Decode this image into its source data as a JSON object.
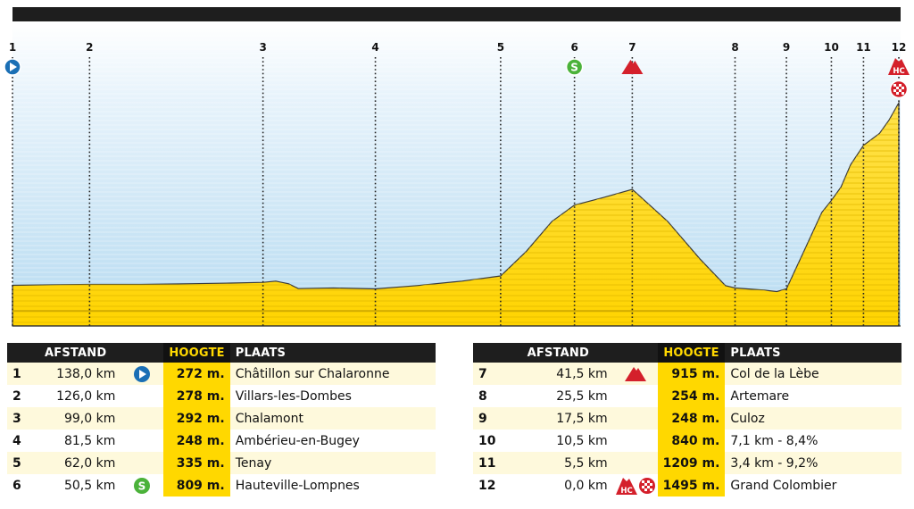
{
  "profile": {
    "points": [
      {
        "id": "1",
        "km_to_go": 138.0
      },
      {
        "id": "2",
        "km_to_go": 126.0
      },
      {
        "id": "3",
        "km_to_go": 99.0
      },
      {
        "id": "4",
        "km_to_go": 81.5
      },
      {
        "id": "5",
        "km_to_go": 62.0
      },
      {
        "id": "6",
        "km_to_go": 50.5
      },
      {
        "id": "7",
        "km_to_go": 41.5
      },
      {
        "id": "8",
        "km_to_go": 25.5
      },
      {
        "id": "9",
        "km_to_go": 17.5
      },
      {
        "id": "10",
        "km_to_go": 10.5
      },
      {
        "id": "11",
        "km_to_go": 5.5
      },
      {
        "id": "12",
        "km_to_go": 0.0
      }
    ],
    "elevation_profile": [
      [
        138.0,
        272
      ],
      [
        132.0,
        275
      ],
      [
        126.0,
        278
      ],
      [
        118.0,
        278
      ],
      [
        110.0,
        283
      ],
      [
        104.0,
        287
      ],
      [
        99.0,
        292
      ],
      [
        97.0,
        300
      ],
      [
        95.0,
        282
      ],
      [
        93.5,
        250
      ],
      [
        88.0,
        254
      ],
      [
        81.5,
        248
      ],
      [
        75.0,
        270
      ],
      [
        68.0,
        300
      ],
      [
        62.0,
        335
      ],
      [
        58.0,
        500
      ],
      [
        54.0,
        700
      ],
      [
        50.5,
        809
      ],
      [
        46.0,
        860
      ],
      [
        41.5,
        915
      ],
      [
        36.0,
        700
      ],
      [
        31.0,
        450
      ],
      [
        27.0,
        270
      ],
      [
        25.5,
        254
      ],
      [
        21.0,
        240
      ],
      [
        19.0,
        230
      ],
      [
        17.5,
        248
      ],
      [
        15.0,
        480
      ],
      [
        12.0,
        760
      ],
      [
        10.5,
        840
      ],
      [
        9.0,
        930
      ],
      [
        7.5,
        1080
      ],
      [
        5.5,
        1209
      ],
      [
        3.0,
        1290
      ],
      [
        1.5,
        1380
      ],
      [
        0.0,
        1495
      ]
    ],
    "colors": {
      "fill": "#ffd800",
      "sky": "#cfe7f6",
      "guide": "#222222",
      "start": "#1a6fb5",
      "sprint": "#4bb23a",
      "climb": "#d4202b"
    },
    "icons": {
      "start": "play-circle-icon",
      "sprint": "sprint-s-icon",
      "climb": "mountain-icon",
      "hc": "hc-climb-icon",
      "finish": "finish-flag-icon"
    }
  },
  "headers": {
    "afstand": "AFSTAND",
    "hoogte": "HOOGTE",
    "plaats": "PLAATS"
  },
  "left_rows": [
    {
      "num": "1",
      "dist": "138,0 km",
      "hoogte": "272 m.",
      "plaats": "Châtillon sur Chalaronne",
      "icon": "start"
    },
    {
      "num": "2",
      "dist": "126,0 km",
      "hoogte": "278 m.",
      "plaats": "Villars-les-Dombes",
      "icon": ""
    },
    {
      "num": "3",
      "dist": "99,0 km",
      "hoogte": "292 m.",
      "plaats": "Chalamont",
      "icon": ""
    },
    {
      "num": "4",
      "dist": "81,5 km",
      "hoogte": "248 m.",
      "plaats": "Ambérieu-en-Bugey",
      "icon": ""
    },
    {
      "num": "5",
      "dist": "62,0 km",
      "hoogte": "335 m.",
      "plaats": "Tenay",
      "icon": ""
    },
    {
      "num": "6",
      "dist": "50,5 km",
      "hoogte": "809 m.",
      "plaats": "Hauteville-Lompnes",
      "icon": "sprint"
    }
  ],
  "right_rows": [
    {
      "num": "7",
      "dist": "41,5 km",
      "hoogte": "915 m.",
      "plaats": "Col de la Lèbe",
      "icon": "climb"
    },
    {
      "num": "8",
      "dist": "25,5 km",
      "hoogte": "254 m.",
      "plaats": "Artemare",
      "icon": ""
    },
    {
      "num": "9",
      "dist": "17,5 km",
      "hoogte": "248 m.",
      "plaats": "Culoz",
      "icon": ""
    },
    {
      "num": "10",
      "dist": "10,5 km",
      "hoogte": "840 m.",
      "plaats": "7,1 km - 8,4%",
      "icon": ""
    },
    {
      "num": "11",
      "dist": "5,5 km",
      "hoogte": "1209 m.",
      "plaats": "3,4 km - 9,2%",
      "icon": ""
    },
    {
      "num": "12",
      "dist": "0,0 km",
      "hoogte": "1495 m.",
      "plaats": "Grand Colombier",
      "icon": "hc-finish"
    }
  ]
}
